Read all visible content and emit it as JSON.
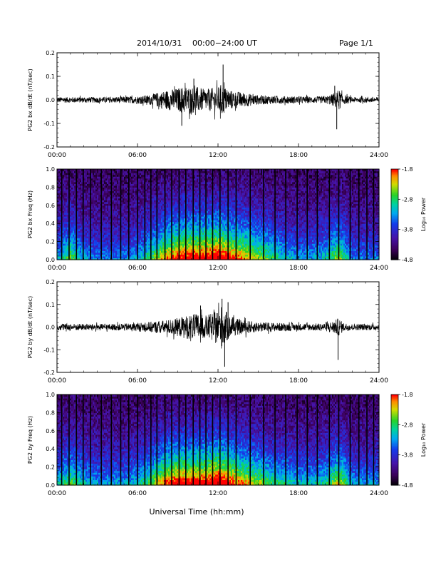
{
  "header": {
    "date": "2014/10/31",
    "range": "00:00−24:00 UT",
    "page": "Page 1/1"
  },
  "xlabel": "Universal Time (hh:mm)",
  "chart_data": [
    {
      "type": "line",
      "ylabel": "PG2 bx dB/dt (nT/sec)",
      "x_ticks": [
        "00:00",
        "06:00",
        "12:00",
        "18:00",
        "24:00"
      ],
      "y_ticks": [
        "0.2",
        "0.1",
        "0.0",
        "-0.1",
        "-0.2"
      ],
      "xlim": [
        0,
        24
      ],
      "ylim": [
        -0.2,
        0.2
      ],
      "x_unit": "hours",
      "envelope": {
        "x": [
          0,
          1,
          2,
          3,
          4,
          5,
          6,
          7,
          8,
          8.5,
          9,
          9.5,
          10,
          10.5,
          11,
          11.5,
          12,
          12.3,
          12.6,
          13,
          13.5,
          14,
          15,
          16,
          17,
          18,
          19,
          20,
          20.5,
          21,
          21.3,
          22,
          23,
          24
        ],
        "amp": [
          0.012,
          0.012,
          0.012,
          0.012,
          0.012,
          0.014,
          0.016,
          0.022,
          0.04,
          0.045,
          0.05,
          0.06,
          0.055,
          0.055,
          0.045,
          0.05,
          0.055,
          0.07,
          0.05,
          0.04,
          0.035,
          0.03,
          0.02,
          0.018,
          0.016,
          0.015,
          0.014,
          0.015,
          0.025,
          0.045,
          0.02,
          0.012,
          0.012,
          0.012
        ]
      },
      "spikes": [
        {
          "x": 12.38,
          "y": 0.15
        },
        {
          "x": 10.2,
          "y": 0.09
        },
        {
          "x": 9.3,
          "y": -0.11
        },
        {
          "x": 20.85,
          "y": -0.125
        },
        {
          "x": 20.7,
          "y": 0.06
        }
      ]
    },
    {
      "type": "heatmap",
      "ylabel": "PG2 bx Freq (Hz)",
      "x_ticks": [
        "00:00",
        "06:00",
        "12:00",
        "18:00",
        "24:00"
      ],
      "y_ticks": [
        "1.0",
        "0.8",
        "0.6",
        "0.4",
        "0.2",
        "0.0"
      ],
      "xlim": [
        0,
        24
      ],
      "ylim": [
        0.0,
        1.0
      ],
      "colorbar": {
        "label": "Log₁₀ Power",
        "ticks": [
          "-1.8",
          "-2.8",
          "-3.8",
          "-4.8"
        ],
        "range": [
          -4.8,
          -1.8
        ]
      },
      "gap_lines_hours": [
        0.35,
        0.9,
        1.45,
        1.95,
        2.5,
        3.3,
        4.05,
        4.75,
        5.35,
        6.0,
        6.55,
        7.0,
        7.45,
        8.05,
        8.55,
        9.1,
        9.6,
        10.15,
        10.65,
        11.1,
        11.6,
        12.15,
        12.75,
        13.35,
        14.4,
        15.4,
        16.25,
        17.05,
        17.9,
        18.65,
        19.4,
        20.3,
        21.0,
        21.85,
        22.5,
        23.1,
        23.6
      ],
      "activity_profile": {
        "x": [
          0,
          1,
          2,
          3,
          4,
          5,
          6,
          7,
          8,
          9,
          10,
          11,
          12,
          13,
          14,
          15,
          16,
          17,
          18,
          19,
          20,
          21,
          22,
          23,
          24
        ],
        "power": [
          0.35,
          0.55,
          0.35,
          0.3,
          0.3,
          0.3,
          0.35,
          0.5,
          0.7,
          0.8,
          0.85,
          0.85,
          0.9,
          0.8,
          0.7,
          0.6,
          0.5,
          0.4,
          0.35,
          0.35,
          0.4,
          0.6,
          0.3,
          0.3,
          0.3
        ]
      }
    },
    {
      "type": "line",
      "ylabel": "PG2 by dB/dt (nT/sec)",
      "x_ticks": [
        "00:00",
        "06:00",
        "12:00",
        "18:00",
        "24:00"
      ],
      "y_ticks": [
        "0.2",
        "0.1",
        "0.0",
        "-0.1",
        "-0.2"
      ],
      "xlim": [
        0,
        24
      ],
      "ylim": [
        -0.2,
        0.2
      ],
      "x_unit": "hours",
      "envelope": {
        "x": [
          0,
          1,
          2,
          3,
          4,
          5,
          6,
          7,
          8,
          8.5,
          9,
          9.5,
          10,
          10.5,
          11,
          11.5,
          12,
          12.3,
          12.6,
          13,
          13.5,
          14,
          15,
          16,
          17,
          18,
          19,
          20,
          20.5,
          21,
          21.3,
          22,
          23,
          24
        ],
        "amp": [
          0.014,
          0.016,
          0.014,
          0.014,
          0.014,
          0.016,
          0.018,
          0.024,
          0.03,
          0.035,
          0.04,
          0.05,
          0.055,
          0.06,
          0.05,
          0.06,
          0.08,
          0.1,
          0.07,
          0.04,
          0.035,
          0.03,
          0.022,
          0.02,
          0.018,
          0.016,
          0.016,
          0.018,
          0.025,
          0.04,
          0.02,
          0.014,
          0.014,
          0.014
        ]
      },
      "spikes": [
        {
          "x": 12.3,
          "y": 0.125
        },
        {
          "x": 12.5,
          "y": -0.175
        },
        {
          "x": 12.75,
          "y": 0.11
        },
        {
          "x": 20.95,
          "y": -0.145
        },
        {
          "x": 10.7,
          "y": 0.095
        }
      ]
    },
    {
      "type": "heatmap",
      "ylabel": "PG2 by Freq (Hz)",
      "x_ticks": [
        "00:00",
        "06:00",
        "12:00",
        "18:00",
        "24:00"
      ],
      "y_ticks": [
        "1.0",
        "0.8",
        "0.6",
        "0.4",
        "0.2",
        "0.0"
      ],
      "xlim": [
        0,
        24
      ],
      "ylim": [
        0.0,
        1.0
      ],
      "colorbar": {
        "label": "Log₁₀ Power",
        "ticks": [
          "-1.8",
          "-2.8",
          "-3.8",
          "-4.8"
        ],
        "range": [
          -4.8,
          -1.8
        ]
      },
      "gap_lines_hours": [
        0.35,
        0.9,
        1.45,
        1.95,
        2.5,
        3.3,
        4.05,
        4.75,
        5.35,
        6.0,
        6.55,
        7.0,
        7.45,
        8.05,
        8.55,
        9.1,
        9.6,
        10.15,
        10.65,
        11.1,
        11.6,
        12.15,
        12.75,
        13.35,
        14.4,
        15.4,
        16.25,
        17.05,
        17.9,
        18.65,
        19.4,
        20.3,
        21.0,
        21.85,
        22.5,
        23.1,
        23.6
      ],
      "activity_profile": {
        "x": [
          0,
          1,
          2,
          3,
          4,
          5,
          6,
          7,
          8,
          9,
          10,
          11,
          12,
          13,
          14,
          15,
          16,
          17,
          18,
          19,
          20,
          21,
          22,
          23,
          24
        ],
        "power": [
          0.4,
          0.55,
          0.4,
          0.35,
          0.35,
          0.35,
          0.4,
          0.55,
          0.75,
          0.85,
          0.85,
          0.85,
          0.95,
          0.8,
          0.7,
          0.6,
          0.5,
          0.45,
          0.4,
          0.4,
          0.45,
          0.65,
          0.35,
          0.35,
          0.35
        ]
      }
    }
  ]
}
